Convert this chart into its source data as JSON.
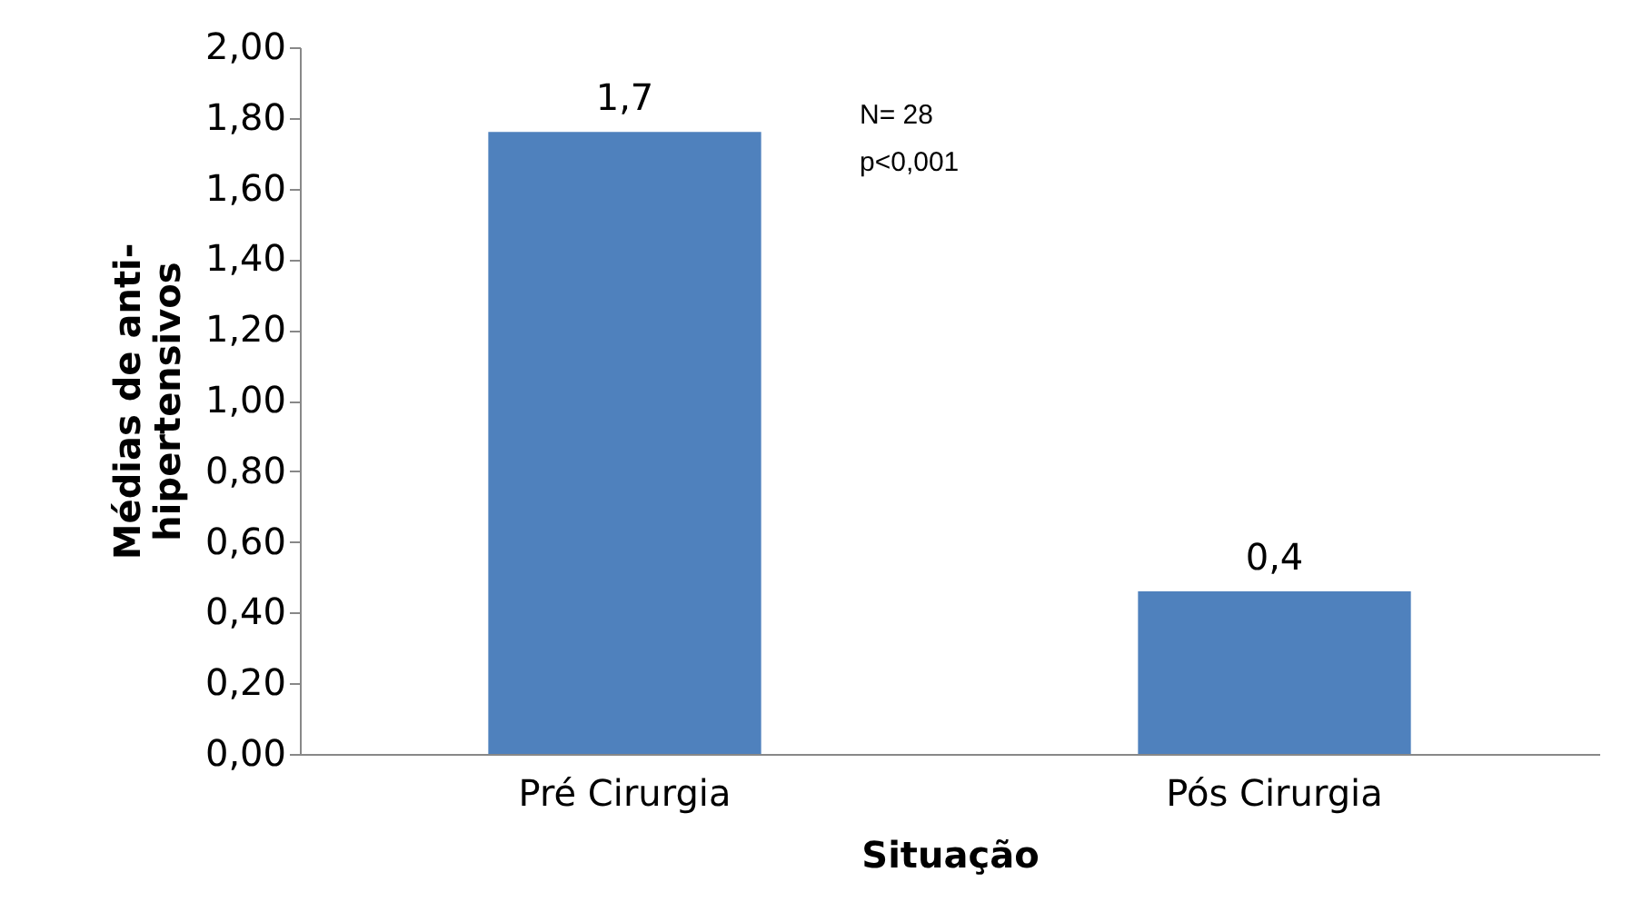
{
  "chart_data": {
    "type": "bar",
    "categories": [
      "Pré Cirurgia",
      "Pós Cirurgia"
    ],
    "values": [
      1.76,
      0.46
    ],
    "color": "#4f81bd",
    "xlabel": "Situação",
    "ylabel": "Médias de anti-hipertensivos",
    "ylim": [
      0,
      2
    ],
    "yticks": [
      {
        "value": 0,
        "label": "0,00"
      },
      {
        "value": 0.2,
        "label": "0,20"
      },
      {
        "value": 0.4,
        "label": "0,40"
      },
      {
        "value": 0.6,
        "label": "0,60"
      },
      {
        "value": 0.8,
        "label": "0,80"
      },
      {
        "value": 1,
        "label": "1,00"
      },
      {
        "value": 1.2,
        "label": "1,20"
      },
      {
        "value": 1.4,
        "label": "1,40"
      },
      {
        "value": 1.6,
        "label": "1,60"
      },
      {
        "value": 1.8,
        "label": "1,80"
      },
      {
        "value": 2,
        "label": "2,00"
      }
    ],
    "annotations": [
      "N= 28",
      "p<0,001",
      {
        "text": "1,7",
        "x": "Pré Cirurgia",
        "y": 1.76
      },
      {
        "text": "0,4",
        "x": "Pós Cirurgia",
        "y": 0.46
      }
    ],
    "grid": false
  }
}
